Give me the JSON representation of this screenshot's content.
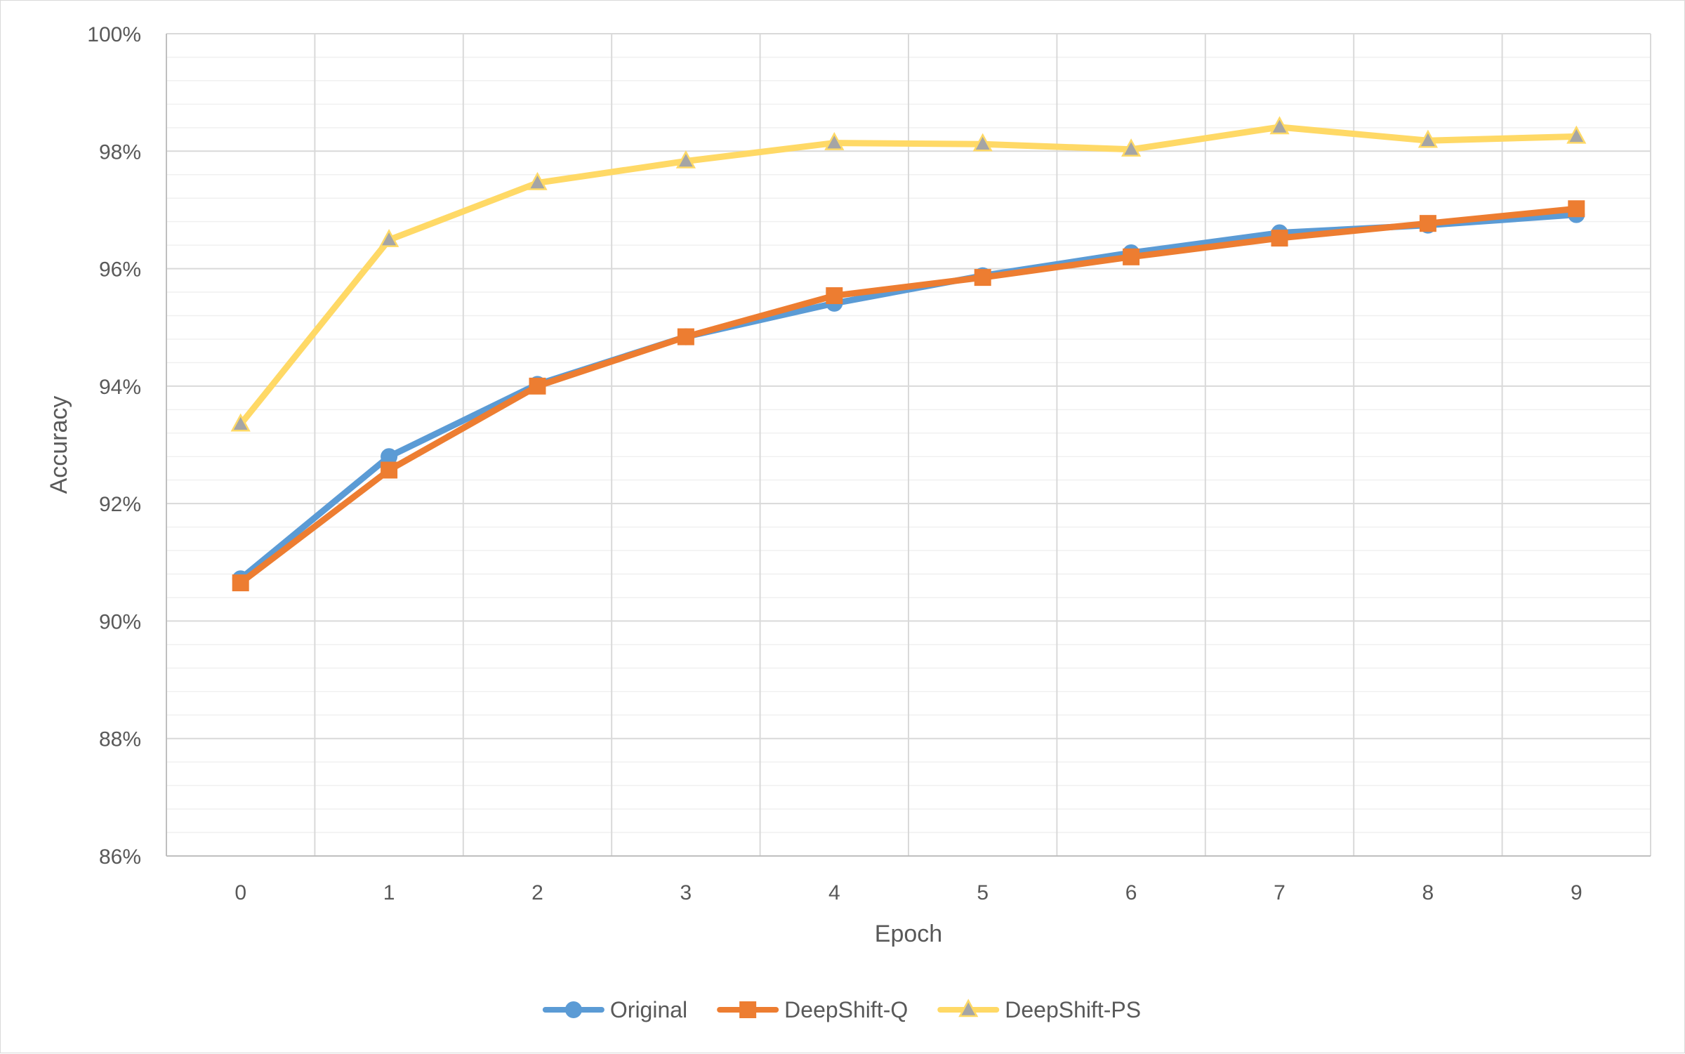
{
  "chart_data": {
    "type": "line",
    "title": "",
    "xlabel": "Epoch",
    "ylabel": "Accuracy",
    "categories": [
      "0",
      "1",
      "2",
      "3",
      "4",
      "5",
      "6",
      "7",
      "8",
      "9"
    ],
    "ylim": [
      0.86,
      1.0
    ],
    "y_ticks": [
      "86%",
      "88%",
      "90%",
      "92%",
      "94%",
      "96%",
      "98%",
      "100%"
    ],
    "y_tick_values": [
      0.86,
      0.88,
      0.9,
      0.92,
      0.94,
      0.96,
      0.98,
      1.0
    ],
    "grid": "major and minor horizontal, major vertical",
    "legend_position": "bottom",
    "series": [
      {
        "name": "Original",
        "color": "#5B9BD5",
        "marker": "circle",
        "values": [
          0.9072,
          0.928,
          0.9403,
          0.9484,
          0.9541,
          0.9588,
          0.9627,
          0.9661,
          0.9674,
          0.9692
        ]
      },
      {
        "name": "DeepShift-Q",
        "color": "#ED7D31",
        "marker": "square",
        "values": [
          0.9065,
          0.9257,
          0.94,
          0.9484,
          0.9554,
          0.9585,
          0.962,
          0.9652,
          0.9677,
          0.9702
        ]
      },
      {
        "name": "DeepShift-PS",
        "color": "#FFD966",
        "marker": "triangle",
        "marker_fill": "#A5A5A5",
        "values": [
          0.9335,
          0.9649,
          0.9746,
          0.9783,
          0.9814,
          0.9812,
          0.9803,
          0.9841,
          0.9818,
          0.9825
        ]
      }
    ]
  }
}
